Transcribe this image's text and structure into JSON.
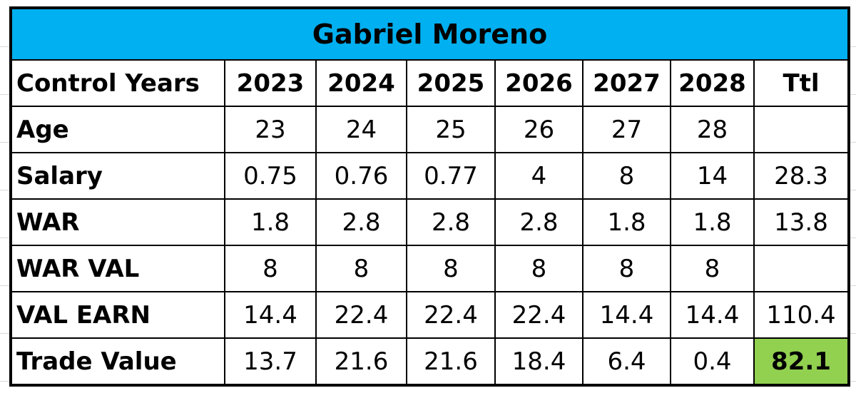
{
  "title": "Gabriel Moreno",
  "header": {
    "label": "Control Years",
    "years": [
      2023,
      2024,
      2025,
      2026,
      2027,
      2028
    ],
    "total": "Ttl"
  },
  "rows": [
    {
      "label": "Age",
      "values": [
        23,
        24,
        25,
        26,
        27,
        28
      ]
    },
    {
      "label": "Salary",
      "values": [
        0.75,
        0.76,
        0.77,
        4,
        8,
        14
      ],
      "total": 28.3
    },
    {
      "label": "WAR",
      "values": [
        1.8,
        2.8,
        2.8,
        2.8,
        1.8,
        1.8
      ],
      "total": 13.8
    },
    {
      "label": "WAR VAL",
      "values": [
        8,
        8,
        8,
        8,
        8,
        8
      ]
    },
    {
      "label": "VAL EARN",
      "values": [
        14.4,
        22.4,
        22.4,
        22.4,
        14.4,
        14.4
      ],
      "total": 110.4
    },
    {
      "label": "Trade Value",
      "values": [
        13.7,
        21.6,
        21.6,
        18.4,
        6.4,
        0.4
      ],
      "total": 82.1
    }
  ]
}
